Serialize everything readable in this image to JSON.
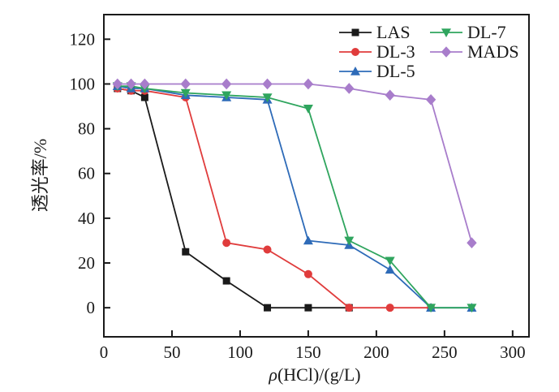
{
  "figure": {
    "background": "#ffffff",
    "frame_color": "#1a1a1a"
  },
  "chart_data": {
    "type": "line",
    "title": "",
    "xlabel": "ρ(HCl)/(g/L)",
    "xlabel_parts": {
      "italic": "ρ",
      "rest": "(HCl)/(g/L)"
    },
    "ylabel": "透光率/%",
    "x_ticks": [
      0,
      50,
      100,
      150,
      200,
      250,
      300
    ],
    "y_ticks": [
      0,
      20,
      40,
      60,
      80,
      100,
      120
    ],
    "x_range": [
      0,
      312
    ],
    "y_range": [
      -13,
      131
    ],
    "grid": false,
    "legend_position": "top-right-inside",
    "legend_columns": 2,
    "series": [
      {
        "name": "LAS",
        "color": "#1a1a1a",
        "marker": "square",
        "points": [
          [
            10,
            98
          ],
          [
            20,
            97
          ],
          [
            30,
            94
          ],
          [
            60,
            25
          ],
          [
            90,
            12
          ],
          [
            120,
            0
          ],
          [
            150,
            0
          ],
          [
            180,
            0
          ]
        ]
      },
      {
        "name": "DL-3",
        "color": "#e03c3c",
        "marker": "circle",
        "points": [
          [
            10,
            98
          ],
          [
            20,
            97
          ],
          [
            30,
            97
          ],
          [
            60,
            94
          ],
          [
            90,
            29
          ],
          [
            120,
            26
          ],
          [
            150,
            15
          ],
          [
            180,
            0
          ],
          [
            210,
            0
          ],
          [
            240,
            0
          ]
        ]
      },
      {
        "name": "DL-5",
        "color": "#2e6bb8",
        "marker": "triangle-up",
        "points": [
          [
            10,
            99
          ],
          [
            20,
            98
          ],
          [
            30,
            98
          ],
          [
            60,
            95
          ],
          [
            90,
            94
          ],
          [
            120,
            93
          ],
          [
            150,
            30
          ],
          [
            180,
            28
          ],
          [
            210,
            17
          ],
          [
            240,
            0
          ],
          [
            270,
            0
          ]
        ]
      },
      {
        "name": "DL-7",
        "color": "#2fa55e",
        "marker": "triangle-down",
        "points": [
          [
            10,
            99
          ],
          [
            20,
            99
          ],
          [
            30,
            98
          ],
          [
            60,
            96
          ],
          [
            90,
            95
          ],
          [
            120,
            94
          ],
          [
            150,
            89
          ],
          [
            180,
            30
          ],
          [
            210,
            21
          ],
          [
            240,
            0
          ],
          [
            270,
            0
          ]
        ]
      },
      {
        "name": "MADS",
        "color": "#a87dcb",
        "marker": "diamond",
        "points": [
          [
            10,
            100
          ],
          [
            20,
            100
          ],
          [
            30,
            100
          ],
          [
            60,
            100
          ],
          [
            90,
            100
          ],
          [
            120,
            100
          ],
          [
            150,
            100
          ],
          [
            180,
            98
          ],
          [
            210,
            95
          ],
          [
            240,
            93
          ],
          [
            270,
            29
          ]
        ]
      }
    ]
  }
}
